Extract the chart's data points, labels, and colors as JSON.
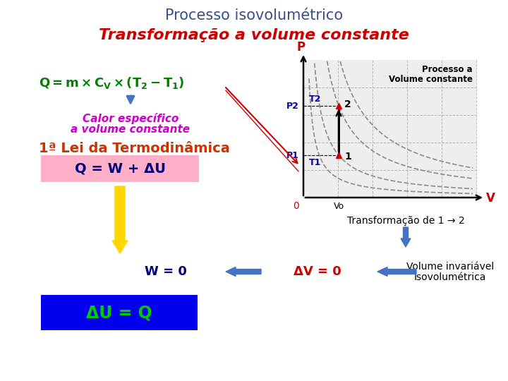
{
  "title1": "Processo isovolumétrico",
  "title2": "Transformação a volume constante",
  "title1_color": "#374F8A",
  "title2_color": "#CC0000",
  "bg_color": "#FFFFFF",
  "eq1_color": "#008000",
  "calor_line1": "Calor específico",
  "calor_line2": "a volume constante",
  "calor_color": "#CC00CC",
  "lei_text": "1ª Lei da Termodinâmica",
  "lei_color": "#CC3300",
  "qwu_text": "Q = W + ΔU",
  "qwu_bg": "#FFB0C8",
  "qwu_color": "#000080",
  "w0_text": "W = 0",
  "w0_color": "#000080",
  "dv0_text": "ΔV = 0",
  "dv0_color": "#CC0000",
  "vol_inv_line1": "Volume invariável",
  "vol_inv_line2": "Isovolumétrica",
  "vol_inv_color": "#000000",
  "transf_text": "Transformação de 1 → 2",
  "transf_color": "#000000",
  "du_eq_q_text": "ΔU = Q",
  "du_eq_q_color": "#00CC00",
  "du_eq_q_bg": "#0000EE",
  "down_arrow1_color": "#4472C4",
  "down_arrow2_color": "#FFD700",
  "down_arrow3_color": "#4472C4",
  "left_arrow_color": "#4472C4",
  "diagram_bg": "#F0F0F0",
  "grid_color": "#AAAAAA",
  "curve_color": "#888888",
  "axis_color": "#000000",
  "p_label_color": "#CC0000",
  "v_label_color": "#CC0000",
  "t_label_color": "#0000CC",
  "p_tick_color": "#0000CC",
  "point_color": "#CC0000",
  "vline_color": "#000000",
  "hline_color": "#000000",
  "red_arrow_color": "#CC0000",
  "legend_color": "#000000"
}
